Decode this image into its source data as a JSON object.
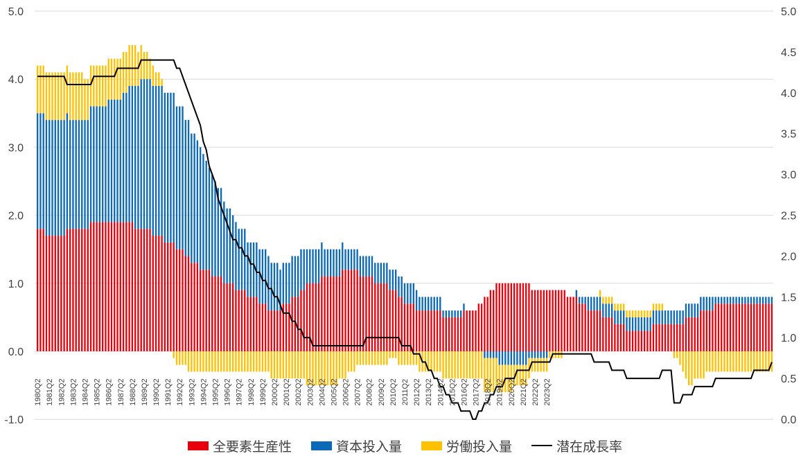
{
  "chart_data": {
    "type": "bar",
    "stacked": true,
    "title": "",
    "xlabel": "",
    "ylabel_left": "",
    "ylabel_right": "",
    "start_period": "1980Q2",
    "ylim_left": [
      -1.0,
      5.0
    ],
    "ylim_right": [
      0.0,
      5.0
    ],
    "left_ticks": [
      "5.0",
      "4.0",
      "3.0",
      "2.0",
      "1.0",
      "0.0",
      "-1.0"
    ],
    "right_ticks": [
      "5.0",
      "4.5",
      "4.0",
      "3.5",
      "3.0",
      "2.5",
      "2.0",
      "1.5",
      "1.0",
      "0.5",
      "0.0"
    ],
    "x_tick_labels": [
      "1980Q2",
      "1981Q2",
      "1982Q2",
      "1983Q2",
      "1984Q2",
      "1985Q2",
      "1986Q2",
      "1987Q2",
      "1988Q2",
      "1989Q2",
      "1990Q2",
      "1991Q2",
      "1992Q2",
      "1993Q2",
      "1994Q2",
      "1995Q2",
      "1996Q2",
      "1997Q2",
      "1998Q2",
      "1999Q2",
      "2000Q2",
      "2001Q2",
      "2002Q2",
      "2003Q2",
      "2004Q2",
      "2005Q2",
      "2006Q2",
      "2007Q2",
      "2008Q2",
      "2009Q2",
      "2010Q2",
      "2011Q2",
      "2012Q2",
      "2013Q2",
      "2014Q2",
      "2015Q2",
      "2016Q2",
      "2017Q2",
      "2018Q2",
      "2019Q2",
      "2020Q2",
      "2021Q2",
      "2022Q2",
      "2023Q2"
    ],
    "grid": true,
    "legend_position": "bottom",
    "colors": {
      "tfp": "#e8000b",
      "capital": "#0a6ab8",
      "labor": "#ffc000",
      "line": "#000000"
    },
    "series": [
      {
        "name": "全要素生産性",
        "key": "tfp",
        "axis": "left",
        "kind": "bar",
        "anchors": [
          [
            0,
            1.8
          ],
          [
            4,
            1.7
          ],
          [
            16,
            1.8
          ],
          [
            20,
            1.9
          ],
          [
            28,
            1.9
          ],
          [
            36,
            1.8
          ],
          [
            40,
            1.7
          ],
          [
            44,
            1.6
          ],
          [
            48,
            1.5
          ],
          [
            52,
            1.3
          ],
          [
            56,
            1.2
          ],
          [
            60,
            1.1
          ],
          [
            64,
            1.0
          ],
          [
            68,
            0.9
          ],
          [
            72,
            0.8
          ],
          [
            76,
            0.7
          ],
          [
            80,
            0.6
          ],
          [
            84,
            0.7
          ],
          [
            88,
            0.8
          ],
          [
            92,
            1.0
          ],
          [
            100,
            1.1
          ],
          [
            106,
            1.2
          ],
          [
            110,
            1.1
          ],
          [
            116,
            1.0
          ],
          [
            120,
            0.9
          ],
          [
            124,
            0.7
          ],
          [
            132,
            0.6
          ],
          [
            140,
            0.5
          ],
          [
            148,
            0.6
          ],
          [
            152,
            0.8
          ],
          [
            156,
            1.0
          ],
          [
            176,
            0.9
          ],
          [
            180,
            0.8
          ],
          [
            184,
            0.7
          ],
          [
            188,
            0.6
          ],
          [
            192,
            0.5
          ],
          [
            196,
            0.4
          ],
          [
            200,
            0.3
          ],
          [
            216,
            0.4
          ],
          [
            222,
            0.5
          ],
          [
            226,
            0.6
          ],
          [
            230,
            0.7
          ],
          [
            248,
            0.7
          ]
        ]
      },
      {
        "name": "資本投入量",
        "key": "capital",
        "axis": "left",
        "kind": "bar",
        "anchors": [
          [
            0,
            1.7
          ],
          [
            4,
            1.7
          ],
          [
            16,
            1.6
          ],
          [
            20,
            1.7
          ],
          [
            28,
            1.8
          ],
          [
            36,
            2.2
          ],
          [
            40,
            2.2
          ],
          [
            44,
            2.2
          ],
          [
            48,
            2.1
          ],
          [
            52,
            1.9
          ],
          [
            56,
            1.7
          ],
          [
            60,
            1.4
          ],
          [
            64,
            1.1
          ],
          [
            68,
            0.9
          ],
          [
            72,
            0.8
          ],
          [
            76,
            0.8
          ],
          [
            80,
            0.7
          ],
          [
            84,
            0.6
          ],
          [
            88,
            0.6
          ],
          [
            92,
            0.5
          ],
          [
            100,
            0.4
          ],
          [
            106,
            0.3
          ],
          [
            110,
            0.3
          ],
          [
            116,
            0.3
          ],
          [
            120,
            0.3
          ],
          [
            124,
            0.3
          ],
          [
            132,
            0.2
          ],
          [
            140,
            0.1
          ],
          [
            148,
            0.0
          ],
          [
            152,
            -0.1
          ],
          [
            160,
            -0.2
          ],
          [
            170,
            -0.1
          ],
          [
            176,
            0.0
          ],
          [
            180,
            0.0
          ],
          [
            184,
            0.1
          ],
          [
            188,
            0.2
          ],
          [
            192,
            0.2
          ],
          [
            196,
            0.2
          ],
          [
            200,
            0.2
          ],
          [
            216,
            0.2
          ],
          [
            222,
            0.2
          ],
          [
            226,
            0.2
          ],
          [
            230,
            0.1
          ],
          [
            248,
            0.1
          ]
        ]
      },
      {
        "name": "労働投入量",
        "key": "labor",
        "axis": "left",
        "kind": "bar",
        "anchors": [
          [
            0,
            0.7
          ],
          [
            4,
            0.7
          ],
          [
            12,
            0.7
          ],
          [
            20,
            0.6
          ],
          [
            28,
            0.6
          ],
          [
            32,
            0.6
          ],
          [
            36,
            0.4
          ],
          [
            40,
            0.2
          ],
          [
            44,
            0.0
          ],
          [
            48,
            -0.2
          ],
          [
            52,
            -0.3
          ],
          [
            56,
            -0.3
          ],
          [
            60,
            -0.3
          ],
          [
            64,
            -0.3
          ],
          [
            68,
            -0.3
          ],
          [
            72,
            -0.3
          ],
          [
            76,
            -0.3
          ],
          [
            80,
            -0.4
          ],
          [
            84,
            -0.4
          ],
          [
            88,
            -0.4
          ],
          [
            92,
            -0.5
          ],
          [
            100,
            -0.5
          ],
          [
            106,
            -0.3
          ],
          [
            110,
            -0.2
          ],
          [
            116,
            -0.2
          ],
          [
            120,
            -0.1
          ],
          [
            124,
            -0.2
          ],
          [
            132,
            -0.3
          ],
          [
            140,
            -0.4
          ],
          [
            148,
            -0.4
          ],
          [
            152,
            -0.5
          ],
          [
            158,
            -0.4
          ],
          [
            164,
            -0.3
          ],
          [
            170,
            -0.2
          ],
          [
            176,
            -0.1
          ],
          [
            180,
            0.0
          ],
          [
            184,
            0.0
          ],
          [
            188,
            0.0
          ],
          [
            192,
            0.1
          ],
          [
            196,
            0.1
          ],
          [
            200,
            0.1
          ],
          [
            210,
            0.1
          ],
          [
            216,
            -0.1
          ],
          [
            220,
            -0.5
          ],
          [
            224,
            -0.4
          ],
          [
            228,
            -0.3
          ],
          [
            232,
            -0.3
          ],
          [
            248,
            -0.3
          ]
        ]
      },
      {
        "name": "潜在成長率",
        "key": "line",
        "axis": "right",
        "kind": "line",
        "anchors": [
          [
            0,
            4.2
          ],
          [
            8,
            4.2
          ],
          [
            10,
            4.1
          ],
          [
            18,
            4.1
          ],
          [
            20,
            4.2
          ],
          [
            26,
            4.2
          ],
          [
            28,
            4.3
          ],
          [
            34,
            4.3
          ],
          [
            36,
            4.4
          ],
          [
            46,
            4.4
          ],
          [
            50,
            4.1
          ],
          [
            54,
            3.7
          ],
          [
            58,
            3.1
          ],
          [
            62,
            2.6
          ],
          [
            66,
            2.2
          ],
          [
            70,
            2.0
          ],
          [
            74,
            1.8
          ],
          [
            78,
            1.6
          ],
          [
            82,
            1.4
          ],
          [
            86,
            1.2
          ],
          [
            90,
            1.0
          ],
          [
            94,
            0.9
          ],
          [
            104,
            0.9
          ],
          [
            110,
            0.9
          ],
          [
            112,
            1.0
          ],
          [
            120,
            1.0
          ],
          [
            124,
            0.9
          ],
          [
            128,
            0.8
          ],
          [
            132,
            0.6
          ],
          [
            136,
            0.4
          ],
          [
            140,
            0.2
          ],
          [
            144,
            0.1
          ],
          [
            148,
            0.0
          ],
          [
            152,
            0.2
          ],
          [
            156,
            0.4
          ],
          [
            160,
            0.5
          ],
          [
            164,
            0.6
          ],
          [
            168,
            0.7
          ],
          [
            172,
            0.7
          ],
          [
            176,
            0.8
          ],
          [
            186,
            0.8
          ],
          [
            188,
            0.7
          ],
          [
            192,
            0.7
          ],
          [
            196,
            0.6
          ],
          [
            200,
            0.5
          ],
          [
            210,
            0.5
          ],
          [
            212,
            0.6
          ],
          [
            214,
            0.6
          ],
          [
            215,
            0.2
          ],
          [
            216,
            0.2
          ],
          [
            220,
            0.3
          ],
          [
            224,
            0.4
          ],
          [
            228,
            0.4
          ],
          [
            230,
            0.5
          ],
          [
            240,
            0.5
          ],
          [
            244,
            0.6
          ],
          [
            247,
            0.6
          ],
          [
            248,
            0.7
          ]
        ]
      }
    ],
    "n_quarters": 249
  },
  "legend": {
    "items": [
      {
        "label": "全要素生産性"
      },
      {
        "label": "資本投入量"
      },
      {
        "label": "労働投入量"
      },
      {
        "label": "潜在成長率"
      }
    ]
  }
}
